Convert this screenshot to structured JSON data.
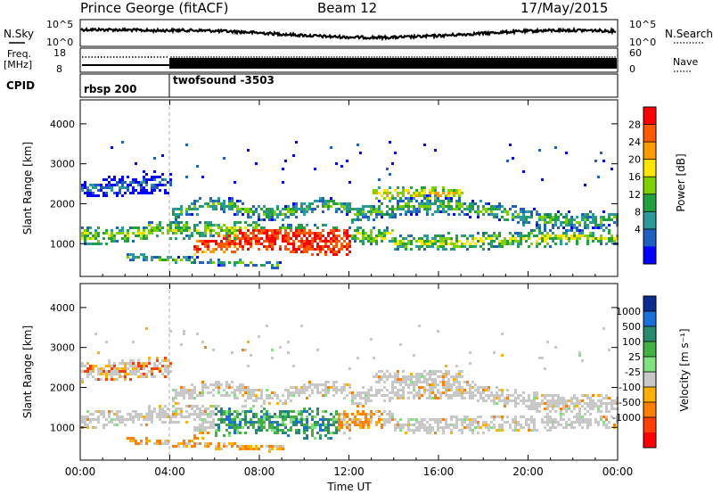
{
  "header": {
    "station": "Prince George (fitACF)",
    "beam": "Beam 12",
    "date": "17/May/2015"
  },
  "panels": {
    "nsky": {
      "label": "N.Sky",
      "right_label": "N.Search",
      "left_ticks": [
        "10^5",
        "10^0"
      ],
      "right_ticks": [
        "10^5",
        "10^0"
      ]
    },
    "freq": {
      "label_line1": "Freq.",
      "label_line2": "[MHz]",
      "left_ticks": [
        "18",
        "8"
      ],
      "right_ticks": [
        "60",
        "0"
      ],
      "right_label": "Nave"
    },
    "cpid": {
      "label": "CPID",
      "segments": [
        {
          "name": "rbsp 200",
          "start_hour": 0,
          "end_hour": 4
        },
        {
          "name": "twofsound -3503",
          "start_hour": 4,
          "end_hour": 24
        }
      ]
    }
  },
  "chart_data": [
    {
      "type": "heatmap",
      "title": "",
      "xlabel": "Time UT",
      "ylabel": "Slant Range [km]",
      "xlim": [
        0,
        24
      ],
      "ylim": [
        180,
        4600
      ],
      "x_ticks": [
        "00:00",
        "04:00",
        "08:00",
        "12:00",
        "16:00",
        "20:00",
        "00:00"
      ],
      "y_ticks": [
        1000,
        2000,
        3000,
        4000
      ],
      "colorbar": {
        "label": "Power [dB]",
        "ticks": [
          "28",
          "24",
          "20",
          "16",
          "12",
          "8",
          "4"
        ],
        "colors": [
          "#ff0000",
          "#ff5a00",
          "#ff9a00",
          "#ffe600",
          "#7fd000",
          "#22a040",
          "#2a9a9a",
          "#1e5fc0",
          "#0000ff"
        ]
      }
    },
    {
      "type": "heatmap",
      "title": "",
      "xlabel": "Time UT",
      "ylabel": "Slant Range [km]",
      "xlim": [
        0,
        24
      ],
      "ylim": [
        180,
        4600
      ],
      "x_ticks": [
        "00:00",
        "04:00",
        "08:00",
        "12:00",
        "16:00",
        "20:00",
        "00:00"
      ],
      "y_ticks": [
        1000,
        2000,
        3000,
        4000
      ],
      "colorbar": {
        "label": "Velocity [m s⁻¹]",
        "ticks": [
          "1000",
          "500",
          "100",
          "25",
          "-25",
          "-100",
          "-500",
          "-1000"
        ],
        "colors": [
          "#0b2d8f",
          "#1a6fd8",
          "#2a8a70",
          "#43b043",
          "#7fe27f",
          "#c8c8c8",
          "#ffb000",
          "#ff8000",
          "#ff4000",
          "#ff0000"
        ]
      }
    }
  ]
}
